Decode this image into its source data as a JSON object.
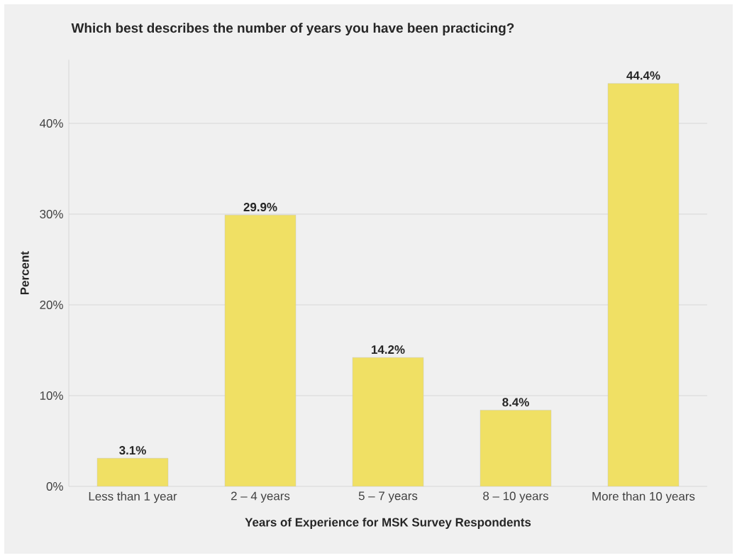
{
  "chart_data": {
    "type": "bar",
    "title": "Which best describes the number of years you have been practicing?",
    "xlabel": "Years of Experience for MSK Survey Respondents",
    "ylabel": "Percent",
    "categories": [
      "Less than 1 year",
      "2 – 4 years",
      "5 – 7 years",
      "8 – 10 years",
      "More than 10 years"
    ],
    "values": [
      3.1,
      29.9,
      14.2,
      8.4,
      44.4
    ],
    "color": "#f0e064",
    "value_labels": [
      "3.1%",
      "29.9%",
      "14.2%",
      "8.4%",
      "44.4%"
    ],
    "yticks": [
      {
        "value": 0,
        "label": "0%"
      },
      {
        "value": 10,
        "label": "10%"
      },
      {
        "value": 20,
        "label": "20%"
      },
      {
        "value": 30,
        "label": "30%"
      },
      {
        "value": 40,
        "label": "40%"
      }
    ],
    "ylim": [
      0,
      47
    ],
    "grid": "y"
  }
}
